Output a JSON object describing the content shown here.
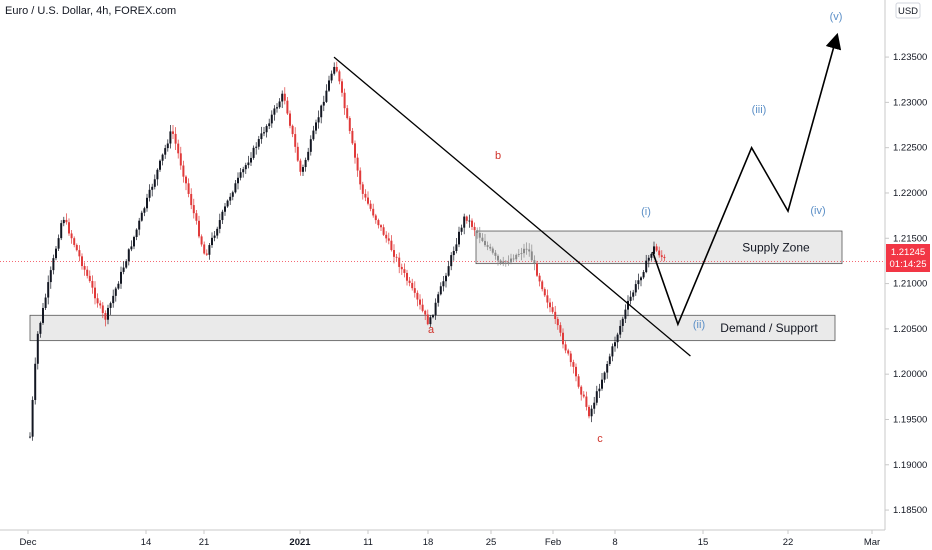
{
  "header": {
    "title": "Euro / U.S. Dollar, 4h, FOREX.com"
  },
  "currency": "USD",
  "price_tag": {
    "price": "1.21245",
    "timer": "01:14:25",
    "color": "#f23645"
  },
  "colors": {
    "up": "#131722",
    "down": "#e03a3a",
    "zone_fill": "#e6e6e6",
    "wave_label": "#5b8fc7",
    "abc_label": "#d0342c"
  },
  "zones": [
    {
      "label": "Supply Zone",
      "price_top": 1.2158,
      "price_bottom": 1.2122
    },
    {
      "label": "Demand / Support",
      "price_top": 1.2065,
      "price_bottom": 1.2037
    }
  ],
  "wave_labels": [
    {
      "text": "(i)",
      "type": "impulse"
    },
    {
      "text": "(ii)",
      "type": "impulse"
    },
    {
      "text": "(iii)",
      "type": "impulse"
    },
    {
      "text": "(iv)",
      "type": "impulse"
    },
    {
      "text": "(v)",
      "type": "impulse"
    },
    {
      "text": "a",
      "type": "corrective"
    },
    {
      "text": "b",
      "type": "corrective"
    },
    {
      "text": "c",
      "type": "corrective"
    }
  ],
  "chart_data": {
    "type": "candlestick",
    "timeframe": "4h",
    "y_ticks": [
      "1.23500",
      "1.23000",
      "1.22500",
      "1.22000",
      "1.21500",
      "1.21000",
      "1.20500",
      "1.20000",
      "1.19500",
      "1.19000",
      "1.18500"
    ],
    "x_ticks": [
      "Dec",
      "14",
      "21",
      "2021",
      "11",
      "18",
      "25",
      "Feb",
      "8",
      "15",
      "22",
      "Mar"
    ],
    "ylim": [
      1.1828,
      1.2413
    ],
    "last_price": 1.21245,
    "price_path": [
      {
        "date": "2020-11-30",
        "price": 1.1916
      },
      {
        "date": "2020-12-01",
        "price": 1.2042
      },
      {
        "date": "2020-12-04",
        "price": 1.2175
      },
      {
        "date": "2020-12-09",
        "price": 1.206
      },
      {
        "date": "2020-12-17",
        "price": 1.227
      },
      {
        "date": "2020-12-21",
        "price": 1.213
      },
      {
        "date": "2020-12-24",
        "price": 1.22
      },
      {
        "date": "2020-12-30",
        "price": 1.231
      },
      {
        "date": "2021-01-01",
        "price": 1.222
      },
      {
        "date": "2021-01-06",
        "price": 1.2345
      },
      {
        "date": "2021-01-10",
        "price": 1.22
      },
      {
        "date": "2021-01-13",
        "price": 1.215
      },
      {
        "date": "2021-01-18",
        "price": 1.2055
      },
      {
        "date": "2021-01-22",
        "price": 1.2175
      },
      {
        "date": "2021-01-26",
        "price": 1.212
      },
      {
        "date": "2021-01-29",
        "price": 1.214
      },
      {
        "date": "2021-02-03",
        "price": 1.201
      },
      {
        "date": "2021-02-05",
        "price": 1.1955
      },
      {
        "date": "2021-02-09",
        "price": 1.208
      },
      {
        "date": "2021-02-11",
        "price": 1.214
      },
      {
        "date": "2021-02-12",
        "price": 1.2124
      }
    ],
    "trendline": [
      {
        "date": "2021-01-06",
        "price": 1.235
      },
      {
        "date": "2021-02-14",
        "price": 1.202
      }
    ],
    "projection": [
      {
        "date": "2021-02-11",
        "price": 1.2135
      },
      {
        "date": "2021-02-13",
        "price": 1.2055
      },
      {
        "date": "2021-02-19",
        "price": 1.225
      },
      {
        "date": "2021-02-22",
        "price": 1.218
      },
      {
        "date": "2021-02-26",
        "price": 1.237
      }
    ]
  }
}
